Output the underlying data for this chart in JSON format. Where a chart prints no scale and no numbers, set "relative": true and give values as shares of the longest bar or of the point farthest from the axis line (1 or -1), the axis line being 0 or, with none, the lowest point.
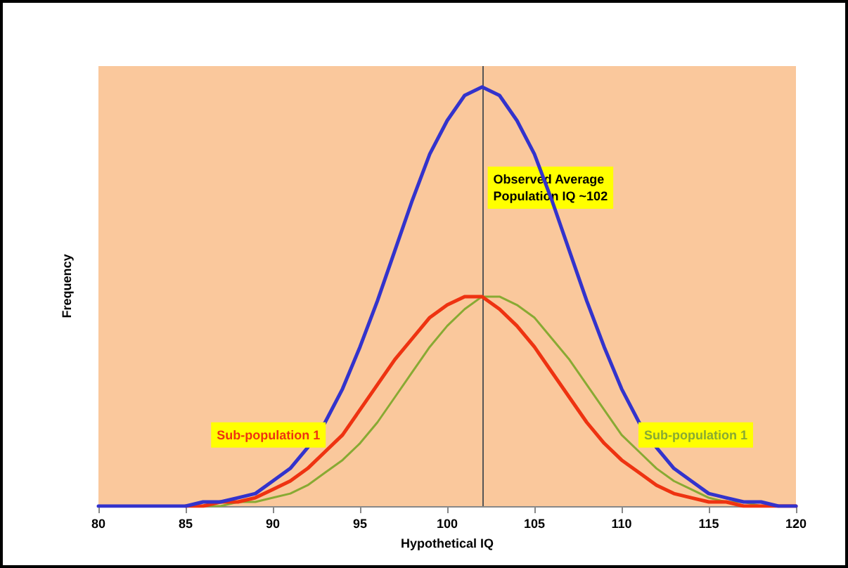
{
  "chart_data": {
    "type": "line",
    "xlabel": "Hypothetical IQ",
    "ylabel": "Frequency",
    "relative": true,
    "x": [
      80,
      81,
      82,
      83,
      84,
      85,
      86,
      87,
      88,
      89,
      90,
      91,
      92,
      93,
      94,
      95,
      96,
      97,
      98,
      99,
      100,
      101,
      102,
      103,
      104,
      105,
      106,
      107,
      108,
      109,
      110,
      111,
      112,
      113,
      114,
      115,
      116,
      117,
      118,
      119,
      120
    ],
    "xlim": [
      80,
      120
    ],
    "xticks": [
      80,
      85,
      90,
      95,
      100,
      105,
      110,
      115,
      120
    ],
    "series": [
      {
        "color": "#3333cc",
        "values": [
          0,
          0,
          0,
          0,
          0,
          0,
          0.01,
          0.01,
          0.02,
          0.03,
          0.06,
          0.09,
          0.14,
          0.2,
          0.28,
          0.38,
          0.49,
          0.61,
          0.73,
          0.84,
          0.92,
          0.98,
          1,
          0.98,
          0.92,
          0.84,
          0.73,
          0.61,
          0.49,
          0.38,
          0.28,
          0.2,
          0.14,
          0.09,
          0.06,
          0.03,
          0.02,
          0.01,
          0.01,
          0,
          0
        ]
      },
      {
        "name": "Sub-population 1",
        "color": "#ee3311",
        "values": [
          null,
          null,
          null,
          null,
          null,
          0,
          0,
          0.01,
          0.01,
          0.02,
          0.04,
          0.06,
          0.09,
          0.13,
          0.17,
          0.23,
          0.29,
          0.35,
          0.4,
          0.45,
          0.48,
          0.5,
          0.5,
          0.47,
          0.43,
          0.38,
          0.32,
          0.26,
          0.2,
          0.15,
          0.11,
          0.08,
          0.05,
          0.03,
          0.02,
          0.01,
          0.01,
          0,
          0,
          0,
          0
        ]
      },
      {
        "name": "Sub-population 1",
        "color": "#88aa33",
        "values": [
          null,
          null,
          null,
          null,
          null,
          0,
          0,
          0,
          0.01,
          0.01,
          0.02,
          0.03,
          0.05,
          0.08,
          0.11,
          0.15,
          0.2,
          0.26,
          0.32,
          0.38,
          0.43,
          0.47,
          0.5,
          0.5,
          0.48,
          0.45,
          0.4,
          0.35,
          0.29,
          0.23,
          0.17,
          0.13,
          0.09,
          0.06,
          0.04,
          0.02,
          0.01,
          0.01,
          0,
          null,
          null
        ]
      }
    ],
    "ref_lines": [
      {
        "axis": "x",
        "value": 102,
        "label": "Observed Average\nPopulation IQ ~102",
        "color": "#555555"
      }
    ],
    "grid": false,
    "legend": false,
    "marker": "none",
    "line_style": "solid"
  }
}
